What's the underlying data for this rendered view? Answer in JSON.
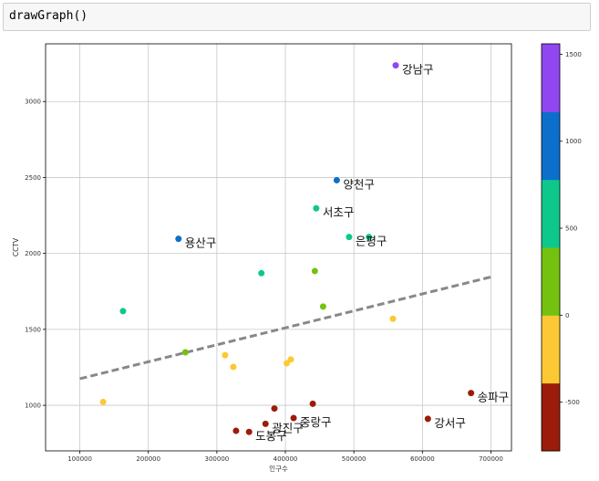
{
  "cell": {
    "code": "drawGraph()"
  },
  "chart_data": {
    "type": "scatter",
    "xlabel": "인구수",
    "ylabel": "CCTV",
    "xlim": [
      50000,
      730000
    ],
    "ylim": [
      700,
      3380
    ],
    "xticks": [
      100000,
      200000,
      300000,
      400000,
      500000,
      600000,
      700000
    ],
    "yticks": [
      1000,
      1500,
      2000,
      2500,
      3000
    ],
    "grid": true,
    "colormap": "discrete",
    "colorbar": {
      "range": [
        -780,
        1560
      ],
      "ticks": [
        -500,
        0,
        500,
        1000,
        1500
      ],
      "colors": [
        "#9b1c0b",
        "#fcc934",
        "#74c20f",
        "#0ec88b",
        "#0b6fcb",
        "#9147ef"
      ]
    },
    "trendline": {
      "x": [
        100000,
        700000
      ],
      "y": [
        1175,
        1845
      ],
      "style": "dashed",
      "color": "#888888"
    },
    "points": [
      {
        "x": 561000,
        "y": 3238,
        "color": "#9147ef",
        "label": "강남구"
      },
      {
        "x": 475000,
        "y": 2482,
        "color": "#0b6fcb",
        "label": "양천구"
      },
      {
        "x": 244000,
        "y": 2096,
        "color": "#0b6fcb",
        "label": "용산구"
      },
      {
        "x": 445000,
        "y": 2297,
        "color": "#0ec88b",
        "label": "서초구"
      },
      {
        "x": 493000,
        "y": 2108,
        "color": "#0ec88b",
        "label": "은평구"
      },
      {
        "x": 522000,
        "y": 2108,
        "color": "#0ec88b",
        "label": ""
      },
      {
        "x": 365000,
        "y": 1870,
        "color": "#0ec88b",
        "label": ""
      },
      {
        "x": 163000,
        "y": 1620,
        "color": "#0ec88b",
        "label": ""
      },
      {
        "x": 443000,
        "y": 1884,
        "color": "#74c20f",
        "label": ""
      },
      {
        "x": 455000,
        "y": 1650,
        "color": "#74c20f",
        "label": ""
      },
      {
        "x": 254000,
        "y": 1349,
        "color": "#74c20f",
        "label": ""
      },
      {
        "x": 557000,
        "y": 1570,
        "color": "#fcc934",
        "label": ""
      },
      {
        "x": 312000,
        "y": 1330,
        "color": "#fcc934",
        "label": ""
      },
      {
        "x": 324000,
        "y": 1253,
        "color": "#fcc934",
        "label": ""
      },
      {
        "x": 402000,
        "y": 1277,
        "color": "#fcc934",
        "label": ""
      },
      {
        "x": 408000,
        "y": 1302,
        "color": "#fcc934",
        "label": ""
      },
      {
        "x": 134000,
        "y": 1022,
        "color": "#fcc934",
        "label": ""
      },
      {
        "x": 671000,
        "y": 1081,
        "color": "#9b1c0b",
        "label": "송파구"
      },
      {
        "x": 608000,
        "y": 911,
        "color": "#9b1c0b",
        "label": "강서구"
      },
      {
        "x": 412000,
        "y": 916,
        "color": "#9b1c0b",
        "label": "중랑구"
      },
      {
        "x": 371000,
        "y": 878,
        "color": "#9b1c0b",
        "label": "광진구"
      },
      {
        "x": 347000,
        "y": 825,
        "color": "#9b1c0b",
        "label": "도봉구"
      },
      {
        "x": 328000,
        "y": 832,
        "color": "#9b1c0b",
        "label": ""
      },
      {
        "x": 384000,
        "y": 979,
        "color": "#9b1c0b",
        "label": ""
      },
      {
        "x": 440000,
        "y": 1010,
        "color": "#9b1c0b",
        "label": ""
      }
    ]
  }
}
